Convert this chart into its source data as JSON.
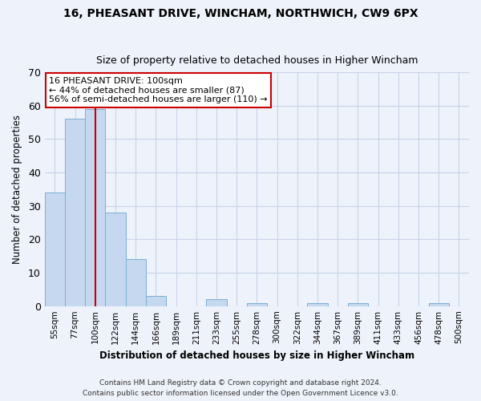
{
  "title1": "16, PHEASANT DRIVE, WINCHAM, NORTHWICH, CW9 6PX",
  "title2": "Size of property relative to detached houses in Higher Wincham",
  "xlabel": "Distribution of detached houses by size in Higher Wincham",
  "ylabel": "Number of detached properties",
  "bar_color": "#c5d8f0",
  "bar_edge_color": "#7aafd4",
  "categories": [
    "55sqm",
    "77sqm",
    "100sqm",
    "122sqm",
    "144sqm",
    "166sqm",
    "189sqm",
    "211sqm",
    "233sqm",
    "255sqm",
    "278sqm",
    "300sqm",
    "322sqm",
    "344sqm",
    "367sqm",
    "389sqm",
    "411sqm",
    "433sqm",
    "456sqm",
    "478sqm",
    "500sqm"
  ],
  "values": [
    34,
    56,
    59,
    28,
    14,
    3,
    0,
    0,
    2,
    0,
    1,
    0,
    0,
    1,
    0,
    1,
    0,
    0,
    0,
    1,
    0
  ],
  "vline_x_index": 2,
  "vline_color": "#cc0000",
  "annotation_line1": "16 PHEASANT DRIVE: 100sqm",
  "annotation_line2": "← 44% of detached houses are smaller (87)",
  "annotation_line3": "56% of semi-detached houses are larger (110) →",
  "annotation_box_color": "#ffffff",
  "annotation_box_edge_color": "#cc0000",
  "ylim": [
    0,
    70
  ],
  "yticks": [
    0,
    10,
    20,
    30,
    40,
    50,
    60,
    70
  ],
  "grid_color": "#c8d4e8",
  "footnote1": "Contains HM Land Registry data © Crown copyright and database right 2024.",
  "footnote2": "Contains public sector information licensed under the Open Government Licence v3.0.",
  "bg_color": "#eef2fb",
  "plot_bg_color": "#eef2fb",
  "title1_fontsize": 10,
  "title2_fontsize": 9
}
